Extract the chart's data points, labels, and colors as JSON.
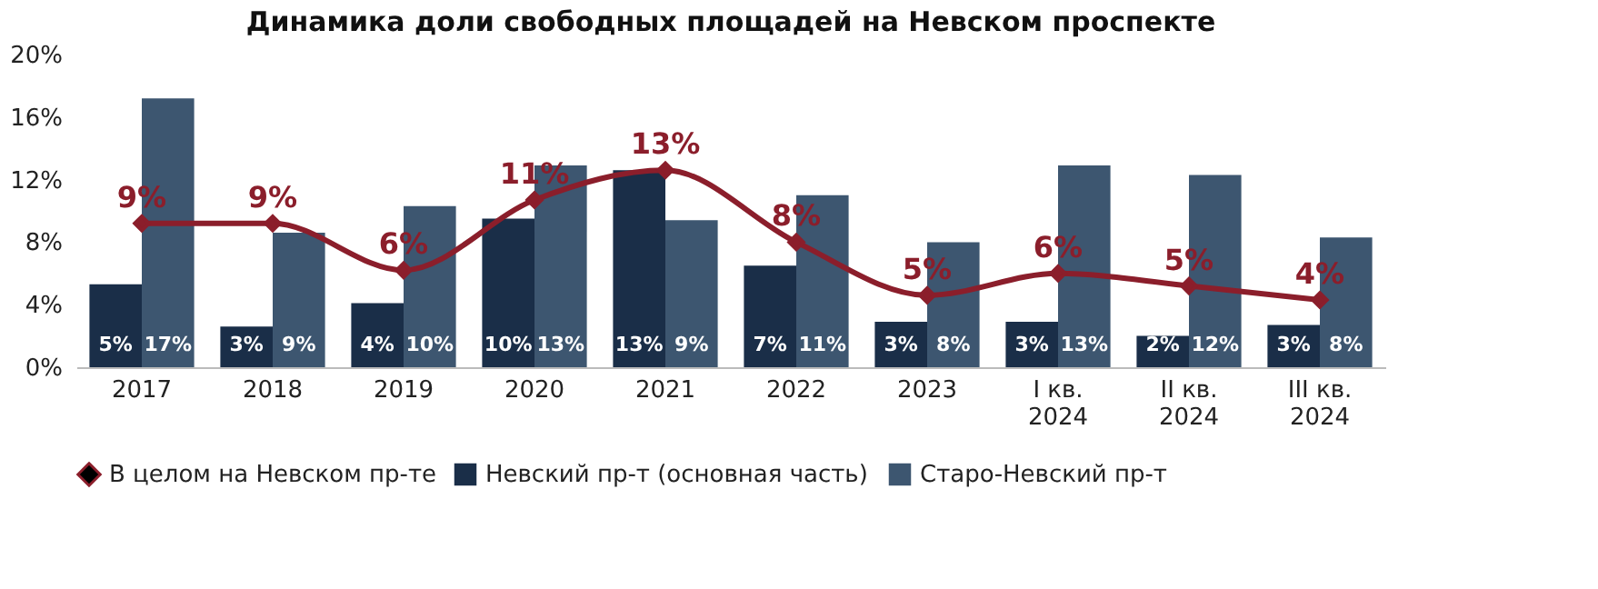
{
  "chart_data": {
    "type": "bar",
    "title": "Динамика доли свободных площадей на Невском проспекте",
    "categories": [
      "2017",
      "2018",
      "2019",
      "2020",
      "2021",
      "2022",
      "2023",
      "I кв.\n2024",
      "II кв.\n2024",
      "III кв.\n2024"
    ],
    "series": [
      {
        "name": "Невский пр-т (основная часть)",
        "color": "#1a2e48",
        "values": [
          5.3,
          2.6,
          4.1,
          9.5,
          12.6,
          6.5,
          2.9,
          2.9,
          2.0,
          2.7
        ],
        "value_labels": [
          "5%",
          "3%",
          "4%",
          "10%",
          "13%",
          "7%",
          "3%",
          "3%",
          "2%",
          "3%"
        ]
      },
      {
        "name": "Старо-Невский пр-т",
        "color": "#3d5670",
        "values": [
          17.2,
          8.6,
          10.3,
          12.9,
          9.4,
          11.0,
          8.0,
          12.9,
          12.3,
          8.3
        ],
        "value_labels": [
          "17%",
          "9%",
          "10%",
          "13%",
          "9%",
          "11%",
          "8%",
          "13%",
          "12%",
          "8%"
        ]
      },
      {
        "name": "В целом на Невском пр-те",
        "type": "line",
        "color": "#8b1e2b",
        "marker": "diamond",
        "values": [
          9.2,
          9.2,
          6.2,
          10.7,
          12.6,
          8.0,
          4.6,
          6.0,
          5.2,
          4.3
        ],
        "value_labels": [
          "9%",
          "9%",
          "6%",
          "11%",
          "13%",
          "8%",
          "5%",
          "6%",
          "5%",
          "4%"
        ]
      }
    ],
    "ylim": [
      0,
      20
    ],
    "yticks": [
      {
        "value": 0,
        "label": "0%"
      },
      {
        "value": 4,
        "label": "4%"
      },
      {
        "value": 8,
        "label": "8%"
      },
      {
        "value": 12,
        "label": "12%"
      },
      {
        "value": 16,
        "label": "16%"
      },
      {
        "value": 20,
        "label": "20%"
      }
    ],
    "grid": false,
    "legend": "bottom"
  }
}
